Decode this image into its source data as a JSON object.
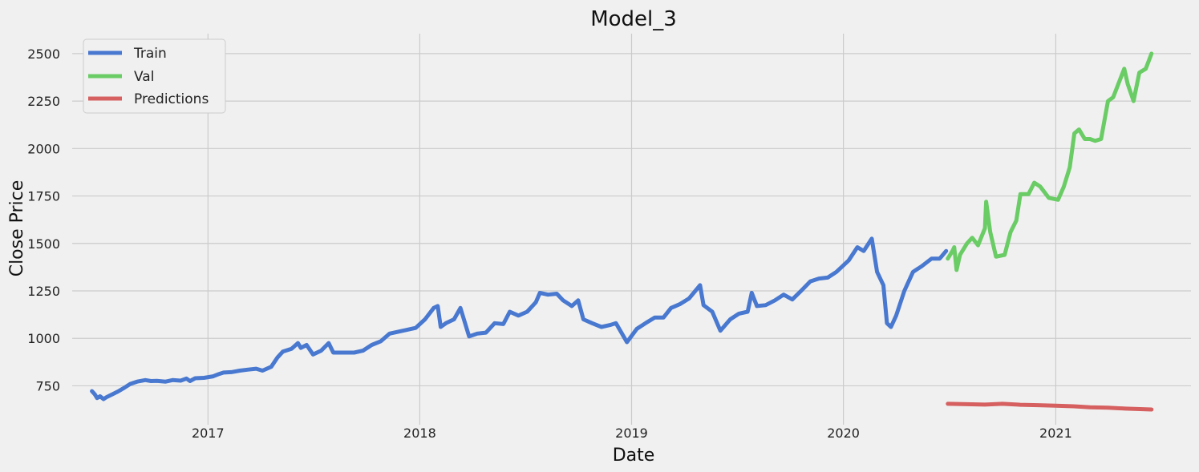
{
  "chart_data": {
    "type": "line",
    "title": "Model_3",
    "xlabel": "Date",
    "ylabel": "Close Price",
    "xlim": [
      "2016-05-12",
      "2021-08-22"
    ],
    "ylim": [
      545,
      2605
    ],
    "xticks": [
      {
        "date": "2017-01-01",
        "label": "2017"
      },
      {
        "date": "2018-01-01",
        "label": "2018"
      },
      {
        "date": "2019-01-01",
        "label": "2019"
      },
      {
        "date": "2020-01-01",
        "label": "2020"
      },
      {
        "date": "2021-01-01",
        "label": "2021"
      }
    ],
    "yticks": [
      750,
      1000,
      1250,
      1500,
      1750,
      2000,
      2250,
      2500
    ],
    "grid": true,
    "legend_position": "top-left",
    "series": [
      {
        "name": "Train",
        "color": "#4878cf",
        "points": [
          [
            "2016-06-15",
            722
          ],
          [
            "2016-06-20",
            705
          ],
          [
            "2016-06-24",
            685
          ],
          [
            "2016-06-29",
            695
          ],
          [
            "2016-07-05",
            680
          ],
          [
            "2016-07-10",
            690
          ],
          [
            "2016-07-20",
            705
          ],
          [
            "2016-07-30",
            720
          ],
          [
            "2016-08-10",
            740
          ],
          [
            "2016-08-20",
            760
          ],
          [
            "2016-09-01",
            772
          ],
          [
            "2016-09-15",
            780
          ],
          [
            "2016-09-25",
            775
          ],
          [
            "2016-10-05",
            776
          ],
          [
            "2016-10-20",
            772
          ],
          [
            "2016-11-01",
            780
          ],
          [
            "2016-11-15",
            777
          ],
          [
            "2016-11-25",
            788
          ],
          [
            "2016-12-01",
            775
          ],
          [
            "2016-12-10",
            790
          ],
          [
            "2016-12-25",
            792
          ],
          [
            "2017-01-10",
            800
          ],
          [
            "2017-01-20",
            812
          ],
          [
            "2017-01-28",
            820
          ],
          [
            "2017-02-10",
            822
          ],
          [
            "2017-02-25",
            830
          ],
          [
            "2017-03-10",
            835
          ],
          [
            "2017-03-25",
            840
          ],
          [
            "2017-04-05",
            830
          ],
          [
            "2017-04-20",
            850
          ],
          [
            "2017-05-01",
            900
          ],
          [
            "2017-05-10",
            930
          ],
          [
            "2017-05-25",
            945
          ],
          [
            "2017-06-05",
            975
          ],
          [
            "2017-06-10",
            950
          ],
          [
            "2017-06-20",
            965
          ],
          [
            "2017-07-01",
            915
          ],
          [
            "2017-07-15",
            935
          ],
          [
            "2017-07-28",
            975
          ],
          [
            "2017-08-05",
            925
          ],
          [
            "2017-08-20",
            925
          ],
          [
            "2017-09-10",
            925
          ],
          [
            "2017-09-25",
            935
          ],
          [
            "2017-10-10",
            965
          ],
          [
            "2017-10-26",
            985
          ],
          [
            "2017-11-10",
            1025
          ],
          [
            "2017-11-25",
            1035
          ],
          [
            "2017-12-10",
            1045
          ],
          [
            "2017-12-25",
            1055
          ],
          [
            "2018-01-10",
            1100
          ],
          [
            "2018-01-25",
            1160
          ],
          [
            "2018-02-01",
            1170
          ],
          [
            "2018-02-06",
            1060
          ],
          [
            "2018-02-15",
            1080
          ],
          [
            "2018-03-01",
            1100
          ],
          [
            "2018-03-12",
            1160
          ],
          [
            "2018-03-27",
            1010
          ],
          [
            "2018-04-10",
            1025
          ],
          [
            "2018-04-25",
            1030
          ],
          [
            "2018-05-10",
            1080
          ],
          [
            "2018-05-25",
            1075
          ],
          [
            "2018-06-05",
            1140
          ],
          [
            "2018-06-20",
            1120
          ],
          [
            "2018-07-05",
            1140
          ],
          [
            "2018-07-20",
            1190
          ],
          [
            "2018-07-27",
            1240
          ],
          [
            "2018-08-10",
            1230
          ],
          [
            "2018-08-25",
            1235
          ],
          [
            "2018-09-05",
            1200
          ],
          [
            "2018-09-20",
            1170
          ],
          [
            "2018-10-01",
            1200
          ],
          [
            "2018-10-10",
            1100
          ],
          [
            "2018-10-25",
            1080
          ],
          [
            "2018-11-10",
            1060
          ],
          [
            "2018-11-25",
            1070
          ],
          [
            "2018-12-05",
            1080
          ],
          [
            "2018-12-24",
            980
          ],
          [
            "2019-01-10",
            1050
          ],
          [
            "2019-01-25",
            1080
          ],
          [
            "2019-02-10",
            1110
          ],
          [
            "2019-02-25",
            1110
          ],
          [
            "2019-03-10",
            1160
          ],
          [
            "2019-03-25",
            1180
          ],
          [
            "2019-04-10",
            1210
          ],
          [
            "2019-04-29",
            1280
          ],
          [
            "2019-05-05",
            1175
          ],
          [
            "2019-05-20",
            1140
          ],
          [
            "2019-06-03",
            1040
          ],
          [
            "2019-06-20",
            1100
          ],
          [
            "2019-07-05",
            1130
          ],
          [
            "2019-07-20",
            1140
          ],
          [
            "2019-07-27",
            1240
          ],
          [
            "2019-08-05",
            1170
          ],
          [
            "2019-08-20",
            1175
          ],
          [
            "2019-09-05",
            1200
          ],
          [
            "2019-09-20",
            1230
          ],
          [
            "2019-10-05",
            1205
          ],
          [
            "2019-10-20",
            1250
          ],
          [
            "2019-11-05",
            1300
          ],
          [
            "2019-11-20",
            1315
          ],
          [
            "2019-12-05",
            1320
          ],
          [
            "2019-12-20",
            1350
          ],
          [
            "2020-01-10",
            1410
          ],
          [
            "2020-01-25",
            1480
          ],
          [
            "2020-02-05",
            1460
          ],
          [
            "2020-02-19",
            1525
          ],
          [
            "2020-02-28",
            1350
          ],
          [
            "2020-03-10",
            1280
          ],
          [
            "2020-03-16",
            1080
          ],
          [
            "2020-03-23",
            1060
          ],
          [
            "2020-04-01",
            1120
          ],
          [
            "2020-04-15",
            1250
          ],
          [
            "2020-04-30",
            1350
          ],
          [
            "2020-05-15",
            1380
          ],
          [
            "2020-06-01",
            1420
          ],
          [
            "2020-06-15",
            1420
          ],
          [
            "2020-06-26",
            1460
          ]
        ]
      },
      {
        "name": "Val",
        "color": "#6acc65",
        "points": [
          [
            "2020-06-29",
            1420
          ],
          [
            "2020-07-07",
            1460
          ],
          [
            "2020-07-10",
            1480
          ],
          [
            "2020-07-14",
            1360
          ],
          [
            "2020-07-20",
            1440
          ],
          [
            "2020-08-01",
            1500
          ],
          [
            "2020-08-10",
            1530
          ],
          [
            "2020-08-20",
            1490
          ],
          [
            "2020-09-01",
            1580
          ],
          [
            "2020-09-03",
            1720
          ],
          [
            "2020-09-10",
            1560
          ],
          [
            "2020-09-20",
            1430
          ],
          [
            "2020-10-05",
            1440
          ],
          [
            "2020-10-15",
            1560
          ],
          [
            "2020-10-25",
            1620
          ],
          [
            "2020-11-01",
            1760
          ],
          [
            "2020-11-15",
            1760
          ],
          [
            "2020-11-25",
            1820
          ],
          [
            "2020-12-05",
            1800
          ],
          [
            "2020-12-20",
            1740
          ],
          [
            "2021-01-05",
            1730
          ],
          [
            "2021-01-15",
            1800
          ],
          [
            "2021-01-25",
            1900
          ],
          [
            "2021-02-02",
            2080
          ],
          [
            "2021-02-10",
            2100
          ],
          [
            "2021-02-20",
            2050
          ],
          [
            "2021-03-01",
            2050
          ],
          [
            "2021-03-10",
            2040
          ],
          [
            "2021-03-20",
            2050
          ],
          [
            "2021-04-01",
            2250
          ],
          [
            "2021-04-10",
            2270
          ],
          [
            "2021-04-29",
            2420
          ],
          [
            "2021-05-05",
            2340
          ],
          [
            "2021-05-15",
            2250
          ],
          [
            "2021-05-25",
            2400
          ],
          [
            "2021-06-05",
            2420
          ],
          [
            "2021-06-15",
            2500
          ]
        ]
      },
      {
        "name": "Predictions",
        "color": "#d65f5f",
        "points": [
          [
            "2020-06-29",
            655
          ],
          [
            "2020-08-01",
            653
          ],
          [
            "2020-09-01",
            651
          ],
          [
            "2020-10-01",
            655
          ],
          [
            "2020-11-01",
            650
          ],
          [
            "2020-12-01",
            648
          ],
          [
            "2021-01-01",
            645
          ],
          [
            "2021-02-01",
            642
          ],
          [
            "2021-03-01",
            637
          ],
          [
            "2021-04-01",
            635
          ],
          [
            "2021-05-01",
            630
          ],
          [
            "2021-06-15",
            625
          ]
        ]
      }
    ]
  }
}
